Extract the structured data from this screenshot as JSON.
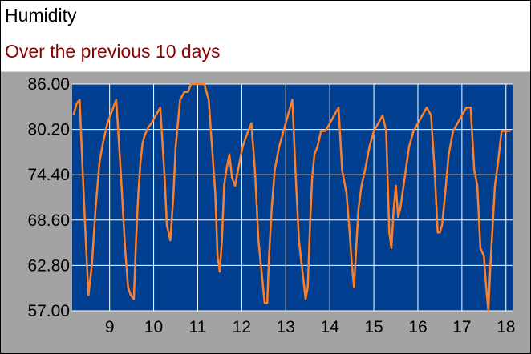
{
  "header": {
    "title": "Humidity",
    "subtitle": "Over the previous 10 days"
  },
  "colors": {
    "plot_background": "#003f8f",
    "gridline": "#ffffff",
    "series_line": "#ff7f27",
    "panel": "#a3a3a3",
    "subtitle": "#8b0000"
  },
  "chart_data": {
    "type": "line",
    "title": "",
    "xlabel": "",
    "ylabel": "",
    "xlim": [
      8.15,
      18.15
    ],
    "ylim": [
      57.0,
      86.0
    ],
    "x_ticks": [
      9,
      10,
      11,
      12,
      13,
      14,
      15,
      16,
      17,
      18
    ],
    "x_tick_labels": [
      "9",
      "10",
      "11",
      "12",
      "13",
      "14",
      "15",
      "16",
      "17",
      "18"
    ],
    "y_ticks": [
      57.0,
      62.8,
      68.6,
      74.4,
      80.2,
      86.0
    ],
    "y_tick_labels": [
      "57.00",
      "62.80",
      "68.60",
      "74.40",
      "80.20",
      "86.00"
    ],
    "grid": true,
    "legend": "none",
    "series": [
      {
        "name": "",
        "x": [
          8.18,
          8.25,
          8.32,
          8.38,
          8.45,
          8.52,
          8.6,
          8.68,
          8.77,
          8.85,
          8.95,
          9.05,
          9.15,
          9.25,
          9.35,
          9.42,
          9.48,
          9.55,
          9.6,
          9.65,
          9.7,
          9.75,
          9.8,
          9.88,
          9.95,
          10.05,
          10.15,
          10.25,
          10.3,
          10.38,
          10.45,
          10.5,
          10.55,
          10.6,
          10.7,
          10.78,
          10.85,
          10.95,
          11.05,
          11.15,
          11.25,
          11.4,
          11.45,
          11.5,
          11.55,
          11.6,
          11.65,
          11.72,
          11.78,
          11.85,
          11.95,
          12.02,
          12.08,
          12.15,
          12.22,
          12.3,
          12.38,
          12.45,
          12.52,
          12.58,
          12.62,
          12.68,
          12.75,
          12.85,
          12.95,
          13.05,
          13.15,
          13.22,
          13.3,
          13.38,
          13.45,
          13.5,
          13.55,
          13.6,
          13.65,
          13.72,
          13.8,
          13.9,
          14.0,
          14.1,
          14.2,
          14.28,
          14.38,
          14.45,
          14.5,
          14.55,
          14.6,
          14.65,
          14.72,
          14.8,
          14.9,
          15.0,
          15.1,
          15.2,
          15.28,
          15.35,
          15.4,
          15.45,
          15.5,
          15.55,
          15.6,
          15.7,
          15.8,
          15.9,
          16.0,
          16.1,
          16.2,
          16.3,
          16.38,
          16.45,
          16.5,
          16.55,
          16.62,
          16.7,
          16.8,
          16.9,
          17.0,
          17.1,
          17.2,
          17.28,
          17.35,
          17.42,
          17.5,
          17.55,
          17.6,
          17.65,
          17.7,
          17.75,
          17.82,
          17.9,
          18.0,
          18.1
        ],
        "y": [
          82.0,
          83.5,
          84.0,
          76.0,
          67.0,
          59.0,
          63.0,
          70.0,
          76.0,
          78.5,
          81.0,
          82.5,
          84.0,
          75.0,
          65.0,
          60.0,
          59.0,
          58.5,
          66.0,
          72.0,
          76.0,
          78.5,
          79.5,
          80.5,
          81.0,
          82.0,
          83.0,
          74.0,
          68.0,
          66.0,
          72.0,
          78.0,
          81.0,
          84.0,
          85.0,
          85.0,
          86.0,
          86.0,
          86.0,
          86.0,
          84.0,
          72.0,
          64.0,
          62.0,
          66.0,
          73.0,
          75.0,
          77.0,
          74.0,
          73.0,
          76.0,
          78.0,
          79.0,
          80.0,
          81.0,
          75.0,
          66.0,
          62.0,
          58.0,
          58.0,
          64.0,
          70.0,
          75.0,
          78.0,
          80.0,
          82.0,
          84.0,
          75.0,
          66.0,
          62.0,
          58.5,
          60.0,
          68.0,
          74.0,
          77.0,
          78.0,
          80.0,
          80.0,
          81.0,
          82.0,
          83.0,
          75.0,
          72.0,
          67.0,
          63.0,
          60.0,
          65.0,
          70.0,
          73.0,
          75.0,
          78.0,
          80.0,
          81.0,
          82.0,
          80.0,
          67.0,
          65.0,
          70.0,
          73.0,
          69.0,
          70.0,
          74.0,
          78.0,
          80.0,
          81.0,
          82.0,
          83.0,
          82.0,
          75.0,
          67.0,
          67.0,
          68.0,
          72.0,
          77.0,
          80.0,
          81.0,
          82.0,
          83.0,
          83.0,
          75.0,
          73.0,
          65.0,
          64.0,
          60.0,
          57.0,
          63.0,
          68.0,
          73.0,
          76.0,
          80.0,
          80.0,
          80.0
        ]
      }
    ]
  }
}
